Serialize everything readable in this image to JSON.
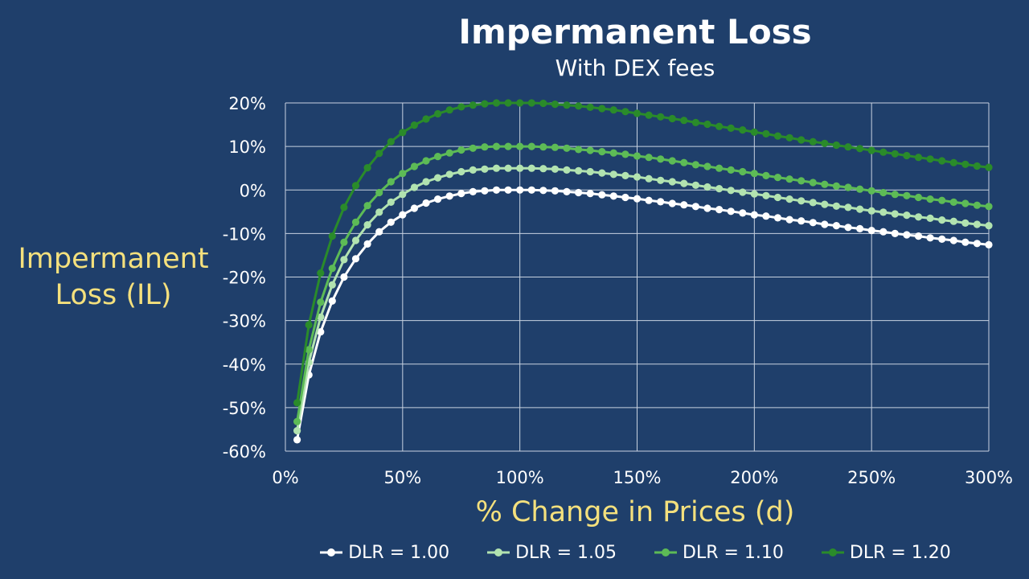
{
  "chart_data": {
    "type": "line",
    "title": "Impermanent Loss",
    "subtitle": "With DEX fees",
    "xlabel": "% Change in Prices (d)",
    "ylabel": "Impermanent Loss (IL)",
    "xlim": [
      0,
      300
    ],
    "ylim": [
      -60,
      20
    ],
    "x_ticks": [
      "0%",
      "50%",
      "100%",
      "150%",
      "200%",
      "250%",
      "300%"
    ],
    "y_ticks": [
      "20%",
      "10%",
      "0%",
      "-10%",
      "-20%",
      "-30%",
      "-40%",
      "-50%",
      "-60%"
    ],
    "grid": true,
    "legend_position": "bottom",
    "x": [
      5,
      10,
      15,
      20,
      25,
      30,
      35,
      40,
      45,
      50,
      55,
      60,
      65,
      70,
      75,
      80,
      85,
      90,
      95,
      100,
      105,
      110,
      115,
      120,
      125,
      130,
      135,
      140,
      145,
      150,
      155,
      160,
      165,
      170,
      175,
      180,
      185,
      190,
      195,
      200,
      205,
      210,
      215,
      220,
      225,
      230,
      235,
      240,
      245,
      250,
      255,
      260,
      265,
      270,
      275,
      280,
      285,
      290,
      295,
      300
    ],
    "series": [
      {
        "name": "DLR = 1.00",
        "color": "#ffffff",
        "values": [
          -57.4,
          -42.5,
          -32.6,
          -25.5,
          -20.0,
          -15.8,
          -12.4,
          -9.6,
          -7.4,
          -5.7,
          -4.2,
          -3.0,
          -2.1,
          -1.4,
          -0.8,
          -0.4,
          -0.2,
          -0.0,
          -0.0,
          0.0,
          -0.0,
          -0.1,
          -0.2,
          -0.4,
          -0.6,
          -0.8,
          -1.1,
          -1.4,
          -1.7,
          -2.0,
          -2.4,
          -2.7,
          -3.1,
          -3.4,
          -3.8,
          -4.2,
          -4.5,
          -4.9,
          -5.3,
          -5.7,
          -6.0,
          -6.4,
          -6.8,
          -7.1,
          -7.5,
          -7.9,
          -8.2,
          -8.6,
          -8.9,
          -9.3,
          -9.6,
          -10.0,
          -10.3,
          -10.6,
          -11.0,
          -11.3,
          -11.6,
          -12.0,
          -12.3,
          -12.6
        ]
      },
      {
        "name": "DLR = 1.05",
        "color": "#b2e3b0",
        "values": [
          -55.3,
          -39.6,
          -29.2,
          -21.8,
          -16.0,
          -11.6,
          -8.0,
          -5.1,
          -2.8,
          -1.0,
          0.6,
          1.9,
          2.8,
          3.6,
          4.2,
          4.6,
          4.8,
          5.0,
          5.0,
          5.0,
          5.0,
          4.9,
          4.8,
          4.6,
          4.4,
          4.2,
          3.9,
          3.6,
          3.3,
          3.0,
          2.6,
          2.2,
          1.9,
          1.5,
          1.1,
          0.7,
          0.3,
          -0.1,
          -0.5,
          -0.9,
          -1.3,
          -1.7,
          -2.1,
          -2.5,
          -2.9,
          -3.3,
          -3.7,
          -4.0,
          -4.4,
          -4.8,
          -5.1,
          -5.5,
          -5.8,
          -6.2,
          -6.5,
          -6.9,
          -7.2,
          -7.6,
          -7.9,
          -8.2
        ]
      },
      {
        "name": "DLR = 1.10",
        "color": "#5dbb56",
        "values": [
          -53.2,
          -36.7,
          -25.8,
          -18.0,
          -12.0,
          -7.4,
          -3.6,
          -0.6,
          1.9,
          3.8,
          5.4,
          6.7,
          7.7,
          8.5,
          9.2,
          9.6,
          9.9,
          10.0,
          10.0,
          10.0,
          10.0,
          9.9,
          9.8,
          9.6,
          9.3,
          9.1,
          8.8,
          8.5,
          8.2,
          7.8,
          7.5,
          7.1,
          6.7,
          6.3,
          5.8,
          5.4,
          5.0,
          4.6,
          4.2,
          3.8,
          3.3,
          2.9,
          2.5,
          2.1,
          1.7,
          1.3,
          0.9,
          0.6,
          0.2,
          -0.2,
          -0.6,
          -1.0,
          -1.3,
          -1.7,
          -2.1,
          -2.4,
          -2.8,
          -3.1,
          -3.5,
          -3.8
        ]
      },
      {
        "name": "DLR = 1.20",
        "color": "#2a8b2a",
        "values": [
          -48.9,
          -31.0,
          -19.1,
          -10.6,
          -4.0,
          1.0,
          5.1,
          8.4,
          11.1,
          13.2,
          14.9,
          16.3,
          17.5,
          18.4,
          19.1,
          19.5,
          19.8,
          20.0,
          20.0,
          20.0,
          20.0,
          19.9,
          19.7,
          19.5,
          19.3,
          19.0,
          18.7,
          18.4,
          18.0,
          17.6,
          17.2,
          16.8,
          16.4,
          16.0,
          15.5,
          15.1,
          14.6,
          14.2,
          13.8,
          13.3,
          12.9,
          12.4,
          12.0,
          11.5,
          11.1,
          10.7,
          10.3,
          9.9,
          9.5,
          9.1,
          8.7,
          8.3,
          7.9,
          7.5,
          7.1,
          6.7,
          6.3,
          5.9,
          5.5,
          5.2
        ]
      }
    ]
  }
}
